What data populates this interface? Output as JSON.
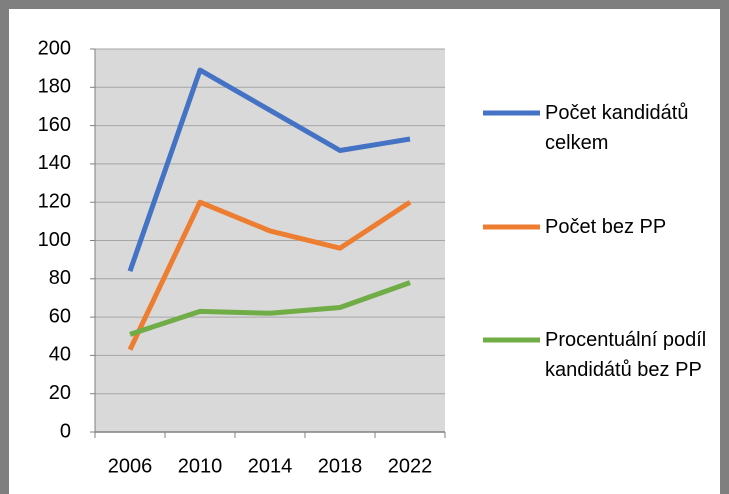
{
  "chart_data": {
    "type": "line",
    "categories": [
      "2006",
      "2010",
      "2014",
      "2018",
      "2022"
    ],
    "series": [
      {
        "name": "Počet kandidátů celkem",
        "color": "#4472c4",
        "values": [
          84,
          189,
          168,
          147,
          153
        ]
      },
      {
        "name": "Počet bez PP",
        "color": "#ed7d31",
        "values": [
          43,
          120,
          105,
          96,
          120
        ]
      },
      {
        "name": "Procentuální podíl kandidátů bez PP",
        "color": "#70ad47",
        "values": [
          51,
          63,
          62,
          65,
          78
        ]
      }
    ],
    "ylim": [
      0,
      200
    ],
    "yticks": [
      0,
      20,
      40,
      60,
      80,
      100,
      120,
      140,
      160,
      180,
      200
    ],
    "grid": true,
    "legend": "right"
  }
}
